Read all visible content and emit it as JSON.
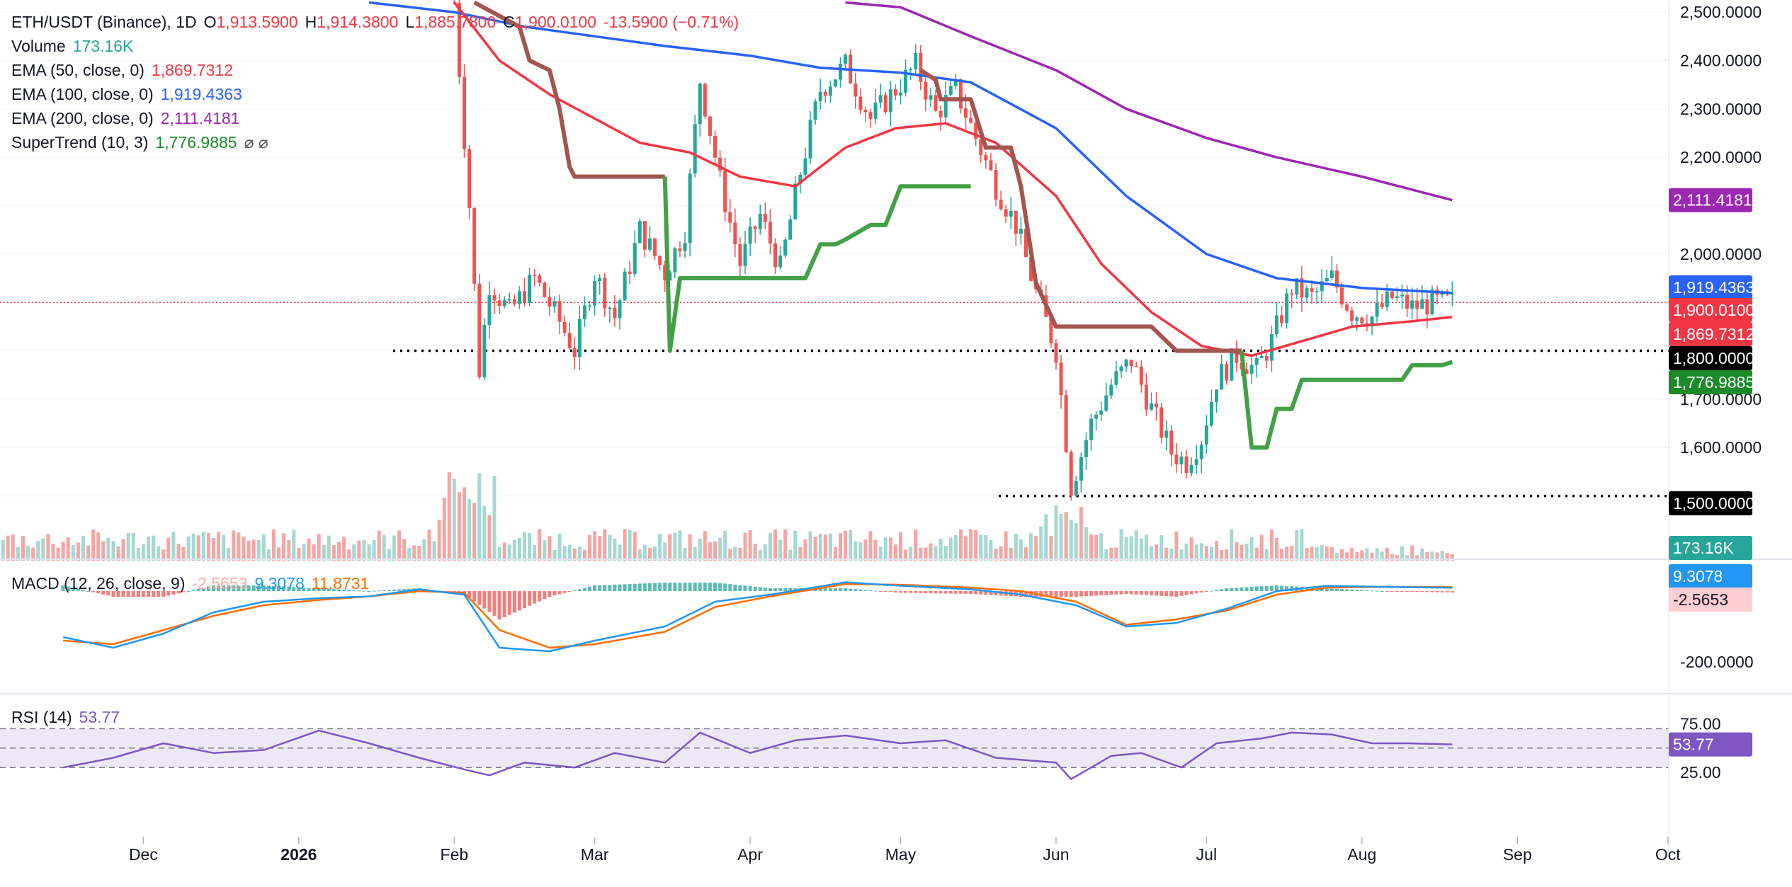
{
  "header": {
    "symbol": "ETH/USDT (Binance), 1D",
    "o_label": "O",
    "o_value": "1,913.5900",
    "h_label": "H",
    "h_value": "1,914.3800",
    "l_label": "L",
    "l_value": "1,885.7800",
    "c_label": "C",
    "c_value": "1,900.0100",
    "change": "-13.5900 (−0.71%)"
  },
  "indicators": {
    "volume": {
      "label": "Volume",
      "value": "173.16K"
    },
    "ema50": {
      "label": "EMA (50, close, 0)",
      "value": "1,869.7312"
    },
    "ema100": {
      "label": "EMA (100, close, 0)",
      "value": "1,919.4363"
    },
    "ema200": {
      "label": "EMA (200, close, 0)",
      "value": "2,111.4181"
    },
    "supertrend": {
      "label": "SuperTrend (10, 3)",
      "value": "1,776.9885",
      "glyphs": "⌀  ⌀"
    },
    "macd": {
      "label": "MACD (12, 26, close, 9)",
      "hist": "-2.5653",
      "macd": "9.3078",
      "signal": "11.8731"
    },
    "rsi": {
      "label": "RSI (14)",
      "value": "53.77"
    }
  },
  "colors": {
    "up": "#26a69a",
    "down": "#ef5350",
    "ema50": "#f23645",
    "ema100": "#2962ff",
    "ema200": "#9c27b0",
    "supertrend_up": "#43a047",
    "supertrend_down": "#a1574f",
    "macd": "#2196f3",
    "signal": "#ff6d00",
    "rsi": "#7e57c2"
  },
  "chart_data": [
    {
      "type": "candlestick",
      "title": "ETH/USDT (Binance), 1D",
      "x_ticks": [
        "Dec",
        "2026",
        "Feb",
        "Mar",
        "Apr",
        "May",
        "Jun",
        "Jul",
        "Aug",
        "Sep",
        "Oct"
      ],
      "y_ticks": [
        "2,500.0000",
        "2,400.0000",
        "2,300.0000",
        "2,200.0000",
        "2,000.0000",
        "1,700.0000",
        "1,600.0000"
      ],
      "ylim": [
        1450,
        2520
      ],
      "horizontal_levels": [
        1800,
        1500
      ],
      "price_tags": [
        {
          "label": "2,111.4181",
          "value": 2111.4181,
          "color": "#9c27b0"
        },
        {
          "label": "1,919.4363",
          "value": 1919.4363,
          "color": "#2962ff"
        },
        {
          "label": "1,900.0100",
          "value": 1900.01,
          "color": "#f23645"
        },
        {
          "label": "1,869.7312",
          "value": 1869.7312,
          "color": "#f23645"
        },
        {
          "label": "1,800.0000",
          "value": 1800,
          "color": "#000000"
        },
        {
          "label": "1,776.9885",
          "value": 1776.9885,
          "color": "#1b8a2a"
        },
        {
          "label": "1,500.0000",
          "value": 1500,
          "color": "#000000"
        }
      ],
      "volume_tag": "173.16K",
      "path": [
        [
          "2026-02-01",
          2520
        ],
        [
          "2026-02-04",
          2100
        ],
        [
          "2026-02-06",
          1760
        ],
        [
          "2026-02-08",
          1940
        ],
        [
          "2026-02-12",
          1880
        ],
        [
          "2026-02-17",
          1950
        ],
        [
          "2026-02-22",
          1860
        ],
        [
          "2026-02-25",
          1800
        ],
        [
          "2026-03-01",
          1960
        ],
        [
          "2026-03-05",
          1870
        ],
        [
          "2026-03-10",
          2050
        ],
        [
          "2026-03-15",
          1960
        ],
        [
          "2026-03-19",
          2050
        ],
        [
          "2026-03-22",
          2360
        ],
        [
          "2026-03-26",
          2150
        ],
        [
          "2026-03-30",
          1980
        ],
        [
          "2026-04-03",
          2080
        ],
        [
          "2026-04-07",
          1970
        ],
        [
          "2026-04-11",
          2170
        ],
        [
          "2026-04-15",
          2340
        ],
        [
          "2026-04-20",
          2390
        ],
        [
          "2026-04-25",
          2280
        ],
        [
          "2026-04-30",
          2340
        ],
        [
          "2026-05-04",
          2390
        ],
        [
          "2026-05-08",
          2290
        ],
        [
          "2026-05-12",
          2340
        ],
        [
          "2026-05-16",
          2240
        ],
        [
          "2026-05-20",
          2140
        ],
        [
          "2026-05-24",
          2060
        ],
        [
          "2026-05-28",
          1920
        ],
        [
          "2026-06-01",
          1800
        ],
        [
          "2026-06-04",
          1520
        ],
        [
          "2026-06-08",
          1650
        ],
        [
          "2026-06-12",
          1730
        ],
        [
          "2026-06-16",
          1780
        ],
        [
          "2026-06-20",
          1680
        ],
        [
          "2026-06-24",
          1590
        ],
        [
          "2026-06-27",
          1570
        ],
        [
          "2026-06-30",
          1620
        ],
        [
          "2026-07-03",
          1740
        ],
        [
          "2026-07-07",
          1790
        ],
        [
          "2026-07-11",
          1760
        ],
        [
          "2026-07-14",
          1820
        ],
        [
          "2026-07-18",
          1930
        ],
        [
          "2026-07-22",
          1910
        ],
        [
          "2026-07-26",
          1950
        ],
        [
          "2026-07-30",
          1880
        ],
        [
          "2026-08-03",
          1870
        ],
        [
          "2026-08-07",
          1910
        ],
        [
          "2026-08-11",
          1890
        ],
        [
          "2026-08-15",
          1900
        ],
        [
          "2026-08-19",
          1900
        ]
      ],
      "ema50": [
        [
          "2026-02-01",
          2520
        ],
        [
          "2026-02-10",
          2400
        ],
        [
          "2026-02-20",
          2330
        ],
        [
          "2026-03-01",
          2280
        ],
        [
          "2026-03-10",
          2230
        ],
        [
          "2026-03-20",
          2210
        ],
        [
          "2026-03-30",
          2160
        ],
        [
          "2026-04-10",
          2140
        ],
        [
          "2026-04-20",
          2220
        ],
        [
          "2026-04-30",
          2260
        ],
        [
          "2026-05-10",
          2270
        ],
        [
          "2026-05-20",
          2230
        ],
        [
          "2026-06-01",
          2120
        ],
        [
          "2026-06-10",
          1980
        ],
        [
          "2026-06-20",
          1880
        ],
        [
          "2026-06-30",
          1810
        ],
        [
          "2026-07-10",
          1790
        ],
        [
          "2026-07-20",
          1820
        ],
        [
          "2026-07-30",
          1850
        ],
        [
          "2026-08-10",
          1860
        ],
        [
          "2026-08-19",
          1869.73
        ]
      ],
      "ema100": [
        [
          "2026-01-15",
          2520
        ],
        [
          "2026-02-01",
          2500
        ],
        [
          "2026-02-15",
          2470
        ],
        [
          "2026-03-01",
          2450
        ],
        [
          "2026-03-15",
          2430
        ],
        [
          "2026-04-01",
          2410
        ],
        [
          "2026-04-15",
          2385
        ],
        [
          "2026-05-01",
          2375
        ],
        [
          "2026-05-15",
          2355
        ],
        [
          "2026-06-01",
          2260
        ],
        [
          "2026-06-15",
          2120
        ],
        [
          "2026-07-01",
          2000
        ],
        [
          "2026-07-15",
          1950
        ],
        [
          "2026-08-01",
          1930
        ],
        [
          "2026-08-19",
          1919.44
        ]
      ],
      "ema200": [
        [
          "2026-04-20",
          2520
        ],
        [
          "2026-05-01",
          2510
        ],
        [
          "2026-05-15",
          2450
        ],
        [
          "2026-06-01",
          2380
        ],
        [
          "2026-06-15",
          2300
        ],
        [
          "2026-07-01",
          2240
        ],
        [
          "2026-07-15",
          2200
        ],
        [
          "2026-08-01",
          2160
        ],
        [
          "2026-08-19",
          2111.42
        ]
      ],
      "supertrend_down": [
        [
          "2026-02-05",
          2520
        ],
        [
          "2026-02-14",
          2470
        ],
        [
          "2026-02-16",
          2400
        ],
        [
          "2026-02-20",
          2380
        ],
        [
          "2026-02-22",
          2300
        ],
        [
          "2026-02-24",
          2180
        ],
        [
          "2026-02-25",
          2160
        ],
        [
          "2026-03-15",
          2160
        ],
        null,
        [
          "2026-05-05",
          2380
        ],
        [
          "2026-05-08",
          2360
        ],
        [
          "2026-05-09",
          2320
        ],
        [
          "2026-05-15",
          2320
        ],
        [
          "2026-05-18",
          2220
        ],
        [
          "2026-05-23",
          2220
        ],
        [
          "2026-05-25",
          2140
        ],
        [
          "2026-05-28",
          1940
        ],
        [
          "2026-06-01",
          1850
        ],
        [
          "2026-06-03",
          1850
        ],
        [
          "2026-06-20",
          1850
        ],
        [
          "2026-06-25",
          1800
        ],
        [
          "2026-07-08",
          1800
        ]
      ],
      "supertrend_up": [
        [
          "2026-03-15",
          2160
        ],
        [
          "2026-03-16",
          1800
        ],
        [
          "2026-03-18",
          1950
        ],
        [
          "2026-04-12",
          1950
        ],
        [
          "2026-04-15",
          2020
        ],
        [
          "2026-04-18",
          2020
        ],
        [
          "2026-04-20",
          2030
        ],
        [
          "2026-04-25",
          2060
        ],
        [
          "2026-04-28",
          2060
        ],
        [
          "2026-05-01",
          2140
        ],
        [
          "2026-05-15",
          2140
        ],
        null,
        [
          "2026-07-08",
          1800
        ],
        [
          "2026-07-10",
          1600
        ],
        [
          "2026-07-13",
          1600
        ],
        [
          "2026-07-15",
          1680
        ],
        [
          "2026-07-18",
          1680
        ],
        [
          "2026-07-20",
          1740
        ],
        [
          "2026-08-09",
          1740
        ],
        [
          "2026-08-11",
          1770
        ],
        [
          "2026-08-17",
          1770
        ],
        [
          "2026-08-19",
          1776.99
        ]
      ],
      "volume_ylim": [
        0,
        400
      ]
    },
    {
      "type": "line",
      "title": "MACD (12, 26, close, 9)",
      "y_ticks": [
        "-200.0000"
      ],
      "ylim": [
        -270,
        30
      ],
      "price_tags": [
        {
          "label": "9.3078",
          "value": 9.3078,
          "color": "#2196f3"
        },
        {
          "label": "-2.5653",
          "value": -2.5653,
          "color": "#ffcdd2"
        }
      ],
      "series": [
        {
          "name": "MACD",
          "points": [
            [
              "2025-11-15",
              -130
            ],
            [
              "2025-11-25",
              -160
            ],
            [
              "2025-12-05",
              -120
            ],
            [
              "2025-12-15",
              -60
            ],
            [
              "2025-12-25",
              -30
            ],
            [
              "2026-01-05",
              -20
            ],
            [
              "2026-01-15",
              -15
            ],
            [
              "2026-01-25",
              5
            ],
            [
              "2026-02-03",
              -10
            ],
            [
              "2026-02-10",
              -160
            ],
            [
              "2026-02-20",
              -170
            ],
            [
              "2026-03-01",
              -140
            ],
            [
              "2026-03-15",
              -100
            ],
            [
              "2026-03-25",
              -30
            ],
            [
              "2026-04-05",
              -10
            ],
            [
              "2026-04-20",
              25
            ],
            [
              "2026-05-01",
              15
            ],
            [
              "2026-05-15",
              5
            ],
            [
              "2026-05-25",
              -10
            ],
            [
              "2026-06-05",
              -40
            ],
            [
              "2026-06-15",
              -100
            ],
            [
              "2026-06-25",
              -90
            ],
            [
              "2026-07-05",
              -50
            ],
            [
              "2026-07-15",
              0
            ],
            [
              "2026-07-25",
              15
            ],
            [
              "2026-08-05",
              12
            ],
            [
              "2026-08-19",
              9.31
            ]
          ]
        },
        {
          "name": "Signal",
          "points": [
            [
              "2025-11-15",
              -140
            ],
            [
              "2025-11-25",
              -150
            ],
            [
              "2025-12-05",
              -110
            ],
            [
              "2025-12-15",
              -70
            ],
            [
              "2025-12-25",
              -40
            ],
            [
              "2026-01-05",
              -25
            ],
            [
              "2026-01-15",
              -15
            ],
            [
              "2026-01-25",
              0
            ],
            [
              "2026-02-03",
              -5
            ],
            [
              "2026-02-10",
              -110
            ],
            [
              "2026-02-20",
              -160
            ],
            [
              "2026-03-01",
              -150
            ],
            [
              "2026-03-15",
              -115
            ],
            [
              "2026-03-25",
              -45
            ],
            [
              "2026-04-05",
              -15
            ],
            [
              "2026-04-20",
              20
            ],
            [
              "2026-05-01",
              18
            ],
            [
              "2026-05-15",
              10
            ],
            [
              "2026-05-25",
              0
            ],
            [
              "2026-06-05",
              -30
            ],
            [
              "2026-06-15",
              -95
            ],
            [
              "2026-06-25",
              -80
            ],
            [
              "2026-07-05",
              -55
            ],
            [
              "2026-07-15",
              -10
            ],
            [
              "2026-07-25",
              10
            ],
            [
              "2026-08-05",
              12
            ],
            [
              "2026-08-19",
              11.87
            ]
          ]
        }
      ]
    },
    {
      "type": "line",
      "title": "RSI (14)",
      "y_ticks": [
        "75.00",
        "25.00"
      ],
      "ylim": [
        10,
        90
      ],
      "bands": [
        70,
        50,
        30
      ],
      "price_tags": [
        {
          "label": "53.77",
          "value": 53.77,
          "color": "#7e57c2"
        }
      ],
      "series": [
        {
          "name": "RSI",
          "points": [
            [
              "2025-11-15",
              30
            ],
            [
              "2025-11-25",
              40
            ],
            [
              "2025-12-05",
              55
            ],
            [
              "2025-12-15",
              45
            ],
            [
              "2025-12-25",
              48
            ],
            [
              "2026-01-05",
              68
            ],
            [
              "2026-01-15",
              55
            ],
            [
              "2026-01-25",
              40
            ],
            [
              "2026-02-03",
              28
            ],
            [
              "2026-02-08",
              22
            ],
            [
              "2026-02-15",
              35
            ],
            [
              "2026-02-25",
              30
            ],
            [
              "2026-03-05",
              45
            ],
            [
              "2026-03-15",
              35
            ],
            [
              "2026-03-22",
              66
            ],
            [
              "2026-04-01",
              45
            ],
            [
              "2026-04-10",
              58
            ],
            [
              "2026-04-20",
              63
            ],
            [
              "2026-05-01",
              55
            ],
            [
              "2026-05-10",
              58
            ],
            [
              "2026-05-20",
              40
            ],
            [
              "2026-06-01",
              35
            ],
            [
              "2026-06-04",
              18
            ],
            [
              "2026-06-12",
              42
            ],
            [
              "2026-06-18",
              45
            ],
            [
              "2026-06-26",
              30
            ],
            [
              "2026-07-03",
              55
            ],
            [
              "2026-07-12",
              60
            ],
            [
              "2026-07-18",
              66
            ],
            [
              "2026-07-26",
              64
            ],
            [
              "2026-08-03",
              55
            ],
            [
              "2026-08-10",
              55
            ],
            [
              "2026-08-19",
              53.77
            ]
          ]
        }
      ]
    }
  ]
}
